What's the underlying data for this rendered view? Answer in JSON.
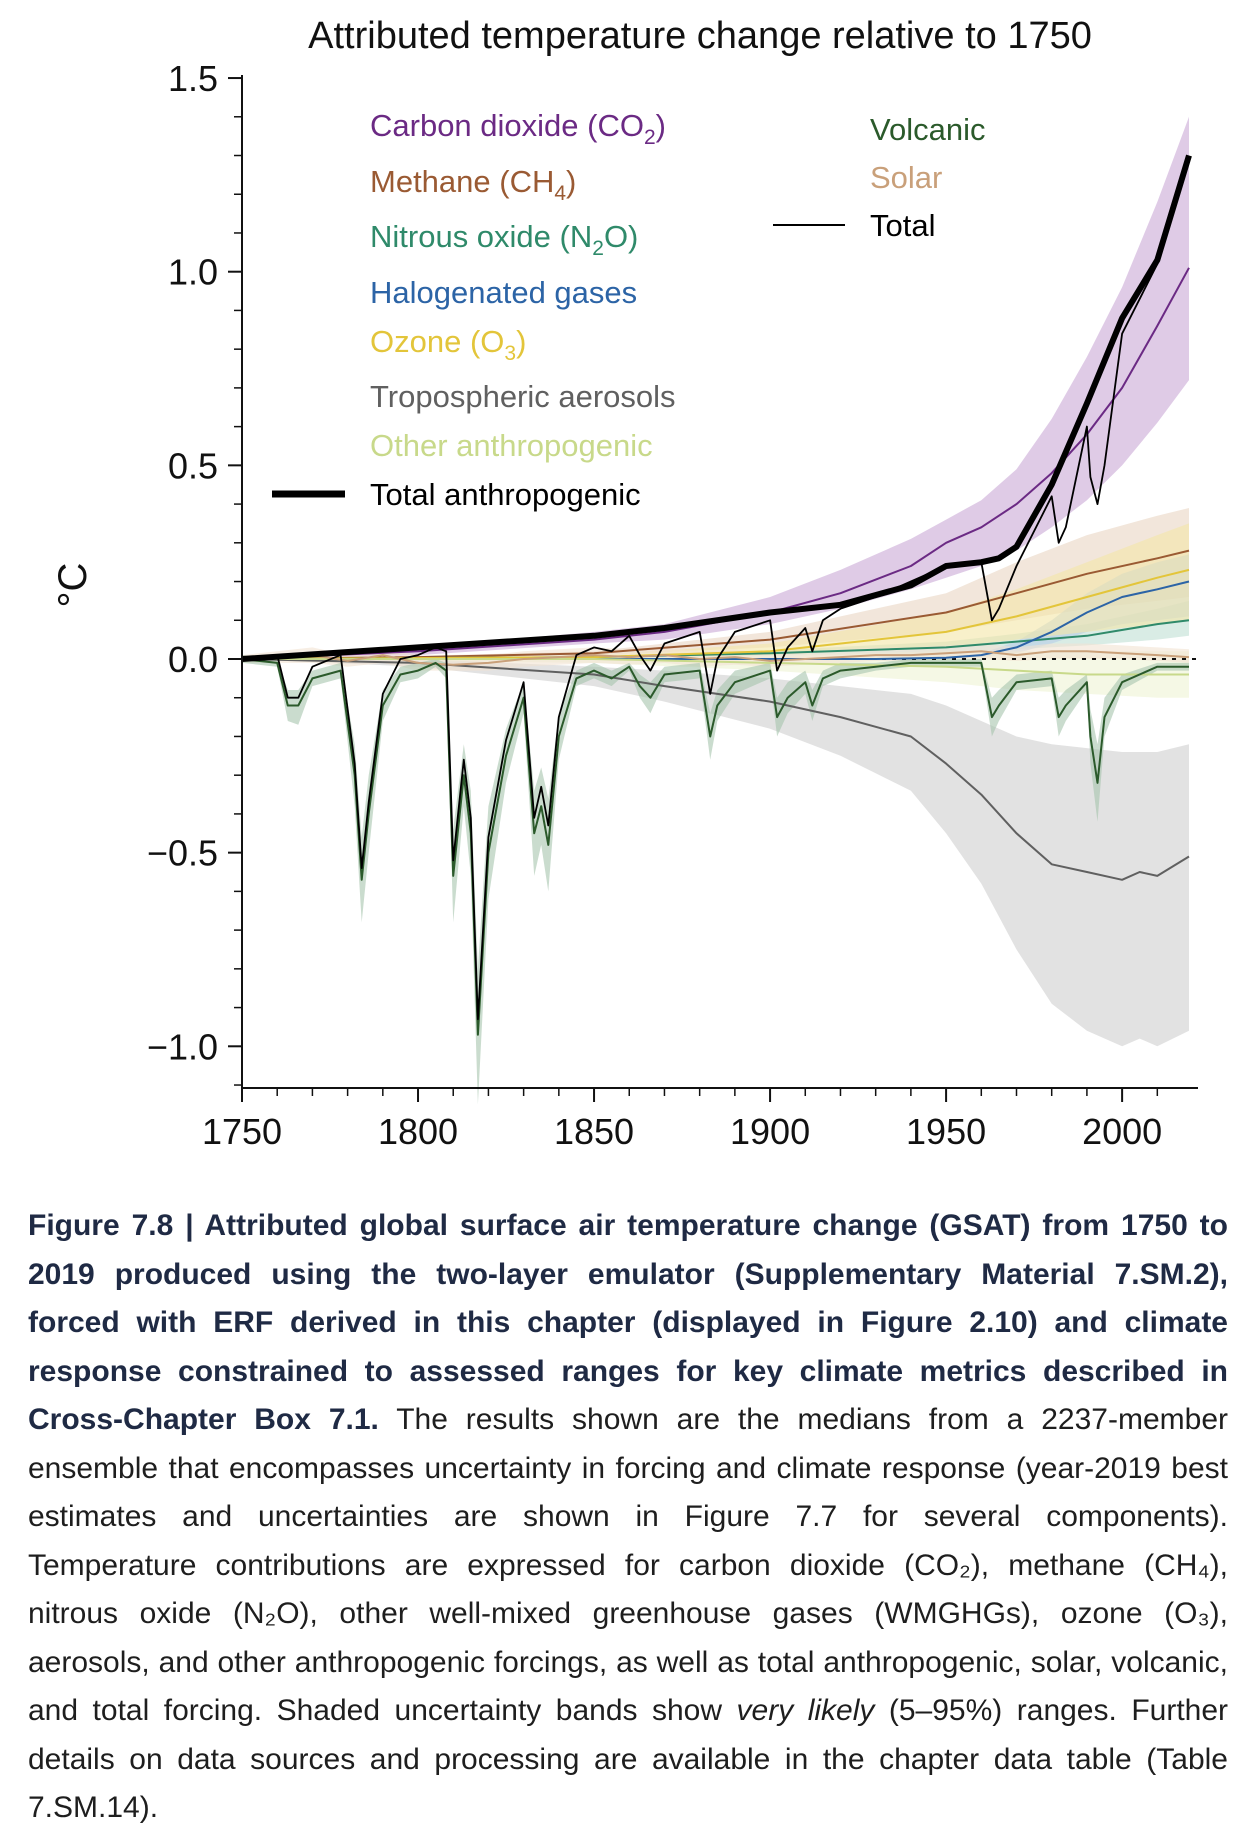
{
  "chart_data": {
    "type": "line",
    "title": "Attributed temperature change relative to 1750",
    "ylabel": "°C",
    "xlabel": "",
    "xlim": [
      1750,
      2020
    ],
    "ylim": [
      -1.1,
      1.5
    ],
    "xticks": [
      "1750",
      "1800",
      "1850",
      "1900",
      "1950",
      "2000"
    ],
    "yticks": [
      "1.5",
      "1.0",
      "0.5",
      "0.0",
      "−0.5",
      "−1.0"
    ],
    "legend": [
      {
        "label": "Carbon dioxide (CO",
        "sub": "2",
        "tail": ")",
        "color": "#6b2a84"
      },
      {
        "label": "Methane (CH",
        "sub": "4",
        "tail": ")",
        "color": "#9a5a33"
      },
      {
        "label": "Nitrous oxide (N",
        "sub": "2",
        "tail": "O)",
        "color": "#2f8a6a"
      },
      {
        "label": "Halogenated gases",
        "sub": "",
        "tail": "",
        "color": "#2c64a6"
      },
      {
        "label": "Ozone (O",
        "sub": "3",
        "tail": ")",
        "color": "#e3c53a"
      },
      {
        "label": "Tropospheric aerosols",
        "sub": "",
        "tail": "",
        "color": "#606060"
      },
      {
        "label": "Other anthropogenic",
        "sub": "",
        "tail": "",
        "color": "#c8d98a"
      },
      {
        "label": "Total anthropogenic",
        "sub": "",
        "tail": "",
        "color": "#000000"
      },
      {
        "label": "Volcanic",
        "sub": "",
        "tail": "",
        "color": "#2b5a2b"
      },
      {
        "label": "Solar",
        "sub": "",
        "tail": "",
        "color": "#c9a07a"
      },
      {
        "label": "Total",
        "sub": "",
        "tail": "",
        "color": "#000000"
      }
    ],
    "series": [
      {
        "name": "Carbon dioxide (CO2)",
        "color": "#6b2a84",
        "band": "#c9a8d6",
        "x": [
          1750,
          1800,
          1850,
          1870,
          1900,
          1920,
          1940,
          1950,
          1960,
          1970,
          1980,
          1990,
          2000,
          2010,
          2019
        ],
        "y": [
          0,
          0.02,
          0.05,
          0.07,
          0.12,
          0.17,
          0.24,
          0.3,
          0.34,
          0.4,
          0.48,
          0.58,
          0.7,
          0.86,
          1.01
        ],
        "lo": [
          0,
          0.01,
          0.04,
          0.05,
          0.09,
          0.13,
          0.18,
          0.21,
          0.24,
          0.28,
          0.34,
          0.41,
          0.5,
          0.61,
          0.72
        ],
        "hi": [
          0,
          0.03,
          0.07,
          0.09,
          0.16,
          0.23,
          0.31,
          0.36,
          0.41,
          0.49,
          0.62,
          0.78,
          0.96,
          1.18,
          1.4
        ]
      },
      {
        "name": "Methane (CH4)",
        "color": "#9a5a33",
        "band": "#ead5c3",
        "x": [
          1750,
          1800,
          1850,
          1900,
          1950,
          1970,
          1990,
          2010,
          2019
        ],
        "y": [
          0,
          0.005,
          0.015,
          0.05,
          0.12,
          0.17,
          0.22,
          0.26,
          0.28
        ],
        "lo": [
          0,
          0.003,
          0.01,
          0.03,
          0.07,
          0.1,
          0.13,
          0.15,
          0.16
        ],
        "hi": [
          0,
          0.008,
          0.02,
          0.07,
          0.17,
          0.25,
          0.32,
          0.37,
          0.39
        ]
      },
      {
        "name": "Nitrous oxide (N2O)",
        "color": "#2f8a6a",
        "band": "#bfe0d4",
        "x": [
          1750,
          1850,
          1900,
          1950,
          1970,
          1990,
          2010,
          2019
        ],
        "y": [
          0,
          0.005,
          0.015,
          0.03,
          0.045,
          0.06,
          0.09,
          0.1
        ],
        "lo": [
          0,
          0.002,
          0.008,
          0.015,
          0.025,
          0.035,
          0.05,
          0.06
        ],
        "hi": [
          0,
          0.008,
          0.022,
          0.045,
          0.065,
          0.09,
          0.13,
          0.15
        ]
      },
      {
        "name": "Halogenated gases",
        "color": "#2c64a6",
        "band": "#b5cde6",
        "x": [
          1750,
          1930,
          1950,
          1960,
          1970,
          1980,
          1990,
          2000,
          2010,
          2019
        ],
        "y": [
          0,
          0,
          0.003,
          0.01,
          0.03,
          0.07,
          0.12,
          0.16,
          0.18,
          0.2
        ],
        "lo": [
          0,
          0,
          0.001,
          0.005,
          0.015,
          0.04,
          0.07,
          0.09,
          0.1,
          0.11
        ],
        "hi": [
          0,
          0,
          0.005,
          0.015,
          0.045,
          0.1,
          0.17,
          0.22,
          0.25,
          0.27
        ]
      },
      {
        "name": "Ozone (O3)",
        "color": "#e3c53a",
        "band": "#f3e6a6",
        "x": [
          1750,
          1850,
          1900,
          1950,
          1970,
          1990,
          2010,
          2019
        ],
        "y": [
          0,
          0.005,
          0.02,
          0.07,
          0.11,
          0.16,
          0.21,
          0.23
        ],
        "lo": [
          0,
          0.002,
          0.01,
          0.03,
          0.05,
          0.07,
          0.09,
          0.1
        ],
        "hi": [
          0,
          0.01,
          0.04,
          0.12,
          0.18,
          0.25,
          0.32,
          0.35
        ]
      },
      {
        "name": "Tropospheric aerosols",
        "color": "#606060",
        "band": "#cfcfcf",
        "x": [
          1750,
          1800,
          1850,
          1870,
          1900,
          1920,
          1940,
          1950,
          1960,
          1970,
          1980,
          1990,
          2000,
          2005,
          2010,
          2019
        ],
        "y": [
          0,
          -0.01,
          -0.04,
          -0.07,
          -0.11,
          -0.15,
          -0.2,
          -0.27,
          -0.35,
          -0.45,
          -0.53,
          -0.55,
          -0.57,
          -0.55,
          -0.56,
          -0.51
        ],
        "lo": [
          0,
          -0.02,
          -0.07,
          -0.11,
          -0.18,
          -0.25,
          -0.34,
          -0.45,
          -0.58,
          -0.75,
          -0.89,
          -0.96,
          -1.0,
          -0.98,
          -1.0,
          -0.96
        ],
        "hi": [
          0,
          0,
          -0.02,
          -0.03,
          -0.05,
          -0.07,
          -0.09,
          -0.12,
          -0.16,
          -0.2,
          -0.22,
          -0.23,
          -0.24,
          -0.24,
          -0.24,
          -0.22
        ]
      },
      {
        "name": "Other anthropogenic",
        "color": "#c8d98a",
        "band": "#eef3d4",
        "x": [
          1750,
          1850,
          1900,
          1950,
          1970,
          1990,
          2010,
          2019
        ],
        "y": [
          0,
          0,
          -0.01,
          -0.02,
          -0.03,
          -0.04,
          -0.04,
          -0.04
        ],
        "lo": [
          0,
          -0.01,
          -0.03,
          -0.06,
          -0.08,
          -0.09,
          -0.1,
          -0.1
        ],
        "hi": [
          0,
          0.01,
          0.01,
          0.02,
          0.02,
          0.02,
          0.02,
          0.02
        ]
      },
      {
        "name": "Solar",
        "color": "#c9a07a",
        "band": "#f2e2d2",
        "x": [
          1750,
          1760,
          1770,
          1780,
          1790,
          1800,
          1810,
          1820,
          1830,
          1840,
          1850,
          1860,
          1870,
          1880,
          1890,
          1900,
          1910,
          1920,
          1930,
          1940,
          1950,
          1960,
          1970,
          1980,
          1990,
          2000,
          2010,
          2019
        ],
        "y": [
          0,
          0.005,
          0.01,
          -0.005,
          0.01,
          -0.01,
          -0.015,
          -0.01,
          0,
          0.005,
          0.01,
          0.005,
          0.01,
          0,
          0.005,
          -0.005,
          0,
          0.005,
          0.01,
          0.01,
          0.015,
          0.02,
          0.01,
          0.02,
          0.02,
          0.015,
          0.01,
          0.005
        ],
        "lo": [
          -0.01,
          -0.01,
          -0.01,
          -0.02,
          -0.01,
          -0.03,
          -0.03,
          -0.03,
          -0.02,
          -0.015,
          -0.01,
          -0.015,
          -0.01,
          -0.02,
          -0.015,
          -0.02,
          -0.015,
          -0.01,
          -0.005,
          -0.005,
          0,
          0,
          -0.005,
          0,
          0,
          0,
          -0.005,
          -0.01
        ],
        "hi": [
          0.01,
          0.02,
          0.03,
          0.01,
          0.03,
          0.01,
          0,
          0.01,
          0.02,
          0.025,
          0.03,
          0.025,
          0.03,
          0.02,
          0.025,
          0.01,
          0.02,
          0.025,
          0.03,
          0.03,
          0.035,
          0.04,
          0.03,
          0.04,
          0.04,
          0.035,
          0.03,
          0.025
        ]
      },
      {
        "name": "Volcanic",
        "color": "#2b5a2b",
        "band": "#a7c4ad",
        "x": [
          1750,
          1760,
          1763,
          1766,
          1770,
          1778,
          1782,
          1784,
          1786,
          1790,
          1795,
          1800,
          1805,
          1808,
          1810,
          1813,
          1815,
          1817,
          1820,
          1825,
          1830,
          1833,
          1835,
          1837,
          1840,
          1845,
          1850,
          1855,
          1860,
          1863,
          1866,
          1870,
          1880,
          1883,
          1885,
          1890,
          1900,
          1902,
          1905,
          1910,
          1912,
          1915,
          1920,
          1930,
          1940,
          1950,
          1960,
          1963,
          1965,
          1970,
          1980,
          1982,
          1984,
          1990,
          1991,
          1993,
          1995,
          2000,
          2010,
          2019
        ],
        "y": [
          0,
          -0.01,
          -0.12,
          -0.12,
          -0.05,
          -0.03,
          -0.3,
          -0.57,
          -0.4,
          -0.12,
          -0.04,
          -0.03,
          -0.01,
          -0.03,
          -0.56,
          -0.3,
          -0.45,
          -0.97,
          -0.5,
          -0.25,
          -0.1,
          -0.45,
          -0.38,
          -0.48,
          -0.2,
          -0.05,
          -0.03,
          -0.05,
          -0.02,
          -0.07,
          -0.1,
          -0.04,
          -0.03,
          -0.2,
          -0.12,
          -0.06,
          -0.03,
          -0.15,
          -0.1,
          -0.06,
          -0.12,
          -0.05,
          -0.03,
          -0.02,
          -0.01,
          -0.01,
          -0.01,
          -0.15,
          -0.12,
          -0.06,
          -0.05,
          -0.15,
          -0.12,
          -0.06,
          -0.2,
          -0.32,
          -0.15,
          -0.06,
          -0.02,
          -0.02
        ],
        "lo": [
          -0.01,
          -0.02,
          -0.16,
          -0.17,
          -0.07,
          -0.05,
          -0.38,
          -0.68,
          -0.5,
          -0.16,
          -0.06,
          -0.05,
          -0.02,
          -0.05,
          -0.68,
          -0.38,
          -0.56,
          -1.15,
          -0.62,
          -0.32,
          -0.14,
          -0.56,
          -0.48,
          -0.6,
          -0.26,
          -0.07,
          -0.05,
          -0.07,
          -0.03,
          -0.1,
          -0.14,
          -0.06,
          -0.05,
          -0.26,
          -0.16,
          -0.09,
          -0.05,
          -0.2,
          -0.14,
          -0.09,
          -0.16,
          -0.07,
          -0.05,
          -0.03,
          -0.02,
          -0.02,
          -0.02,
          -0.2,
          -0.16,
          -0.08,
          -0.07,
          -0.2,
          -0.16,
          -0.08,
          -0.27,
          -0.42,
          -0.2,
          -0.08,
          -0.03,
          -0.03
        ],
        "hi": [
          0.01,
          0,
          -0.08,
          -0.08,
          -0.03,
          -0.01,
          -0.22,
          -0.46,
          -0.3,
          -0.08,
          -0.02,
          -0.01,
          0,
          -0.01,
          -0.44,
          -0.22,
          -0.34,
          -0.8,
          -0.38,
          -0.18,
          -0.06,
          -0.34,
          -0.28,
          -0.36,
          -0.14,
          -0.03,
          -0.01,
          -0.03,
          -0.01,
          -0.04,
          -0.06,
          -0.02,
          -0.01,
          -0.14,
          -0.08,
          -0.03,
          -0.01,
          -0.1,
          -0.06,
          -0.03,
          -0.08,
          -0.03,
          -0.01,
          -0.01,
          0,
          0,
          0,
          -0.1,
          -0.08,
          -0.04,
          -0.03,
          -0.1,
          -0.08,
          -0.04,
          -0.13,
          -0.22,
          -0.1,
          -0.04,
          -0.01,
          -0.01
        ]
      },
      {
        "name": "Total anthropogenic",
        "color": "#000000",
        "x": [
          1750,
          1800,
          1850,
          1870,
          1900,
          1920,
          1940,
          1950,
          1960,
          1965,
          1970,
          1980,
          1990,
          2000,
          2010,
          2019
        ],
        "y": [
          0,
          0.03,
          0.06,
          0.08,
          0.12,
          0.14,
          0.19,
          0.24,
          0.25,
          0.26,
          0.29,
          0.45,
          0.66,
          0.88,
          1.03,
          1.3
        ]
      },
      {
        "name": "Total",
        "color": "#000000",
        "x": [
          1750,
          1760,
          1763,
          1766,
          1770,
          1778,
          1782,
          1784,
          1786,
          1790,
          1795,
          1800,
          1805,
          1808,
          1810,
          1813,
          1815,
          1817,
          1820,
          1825,
          1830,
          1833,
          1835,
          1837,
          1840,
          1845,
          1850,
          1855,
          1860,
          1863,
          1866,
          1870,
          1880,
          1883,
          1885,
          1890,
          1900,
          1902,
          1905,
          1910,
          1912,
          1915,
          1920,
          1930,
          1940,
          1950,
          1960,
          1963,
          1965,
          1970,
          1980,
          1982,
          1984,
          1990,
          1991,
          1993,
          1995,
          2000,
          2010,
          2019
        ],
        "y": [
          0,
          0.01,
          -0.1,
          -0.1,
          -0.02,
          0.01,
          -0.27,
          -0.54,
          -0.37,
          -0.09,
          0,
          0.01,
          0.03,
          0.02,
          -0.52,
          -0.26,
          -0.41,
          -0.93,
          -0.46,
          -0.21,
          -0.06,
          -0.41,
          -0.33,
          -0.43,
          -0.15,
          0.01,
          0.03,
          0.02,
          0.06,
          0.01,
          -0.03,
          0.04,
          0.07,
          -0.09,
          0,
          0.07,
          0.1,
          -0.03,
          0.03,
          0.08,
          0.02,
          0.1,
          0.13,
          0.16,
          0.2,
          0.24,
          0.25,
          0.1,
          0.13,
          0.24,
          0.42,
          0.3,
          0.34,
          0.6,
          0.47,
          0.4,
          0.5,
          0.84,
          1.02,
          1.29
        ]
      }
    ]
  },
  "caption": {
    "lead": "Figure 7.8 | Attributed global surface air temperature change (GSAT) from 1750 to 2019 produced using the two-layer emulator (Supplementary Material 7.SM.2), forced with ERF derived in this chapter (displayed in Figure 2.10) and climate response constrained to assessed ranges for key climate metrics described in Cross-Chapter Box 7.1.",
    "body1": " The results shown are the medians from a 2237-member ensemble that encompasses uncertainty in forcing and climate response (year-2019 best estimates and uncertainties are shown in Figure 7.7 for several components). Temperature contributions are expressed for carbon dioxide (CO₂), methane (CH₄), nitrous oxide (N₂O), other well-mixed greenhouse gases (WMGHGs), ozone (O₃), aerosols, and other anthropogenic forcings, as well as total anthropogenic, solar, volcanic, and total forcing. Shaded uncertainty bands show ",
    "italic": "very likely",
    "body2": " (5–95%) ranges. Further details on data sources and processing are available in the chapter data table (Table 7.SM.14)."
  }
}
